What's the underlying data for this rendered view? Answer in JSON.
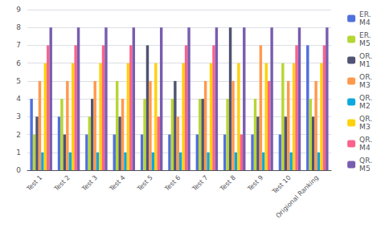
{
  "chart_data": {
    "type": "bar",
    "categories": [
      "Test 1",
      "Test 2",
      "Test 3",
      "Test 4",
      "Test 5",
      "Test 6",
      "Test 7",
      "Test 8",
      "Test 9",
      "Test 10",
      "Origional Ranking"
    ],
    "series": [
      {
        "name": "ER.\nM4",
        "values": [
          4,
          3,
          2,
          2,
          2,
          2,
          2,
          2,
          2,
          2,
          7
        ]
      },
      {
        "name": "ER.\nM5",
        "values": [
          2,
          4,
          3,
          5,
          4,
          4,
          4,
          4,
          4,
          6,
          4
        ]
      },
      {
        "name": "OR.\nM1",
        "values": [
          3,
          2,
          4,
          3,
          7,
          5,
          4,
          8,
          3,
          3,
          3
        ]
      },
      {
        "name": "OR.\nM3",
        "values": [
          5,
          5,
          5,
          4,
          5,
          3,
          5,
          5,
          7,
          5,
          5
        ]
      },
      {
        "name": "QR.\nM2",
        "values": [
          1,
          1,
          1,
          1,
          1,
          1,
          1,
          1,
          1,
          1,
          1
        ]
      },
      {
        "name": "QR.\nM3",
        "values": [
          6,
          6,
          6,
          6,
          6,
          6,
          6,
          6,
          6,
          6,
          6
        ]
      },
      {
        "name": "QR.\nM4",
        "values": [
          7,
          7,
          7,
          7,
          3,
          7,
          7,
          2,
          5,
          7,
          7
        ]
      },
      {
        "name": "QR.\nM5",
        "values": [
          8,
          8,
          8,
          8,
          8,
          8,
          8,
          8,
          8,
          8,
          8
        ]
      }
    ],
    "ylim": [
      0,
      9
    ],
    "yticks": [
      0,
      1,
      2,
      3,
      4,
      5,
      6,
      7,
      8,
      9
    ],
    "grid": true,
    "legend": "right"
  }
}
